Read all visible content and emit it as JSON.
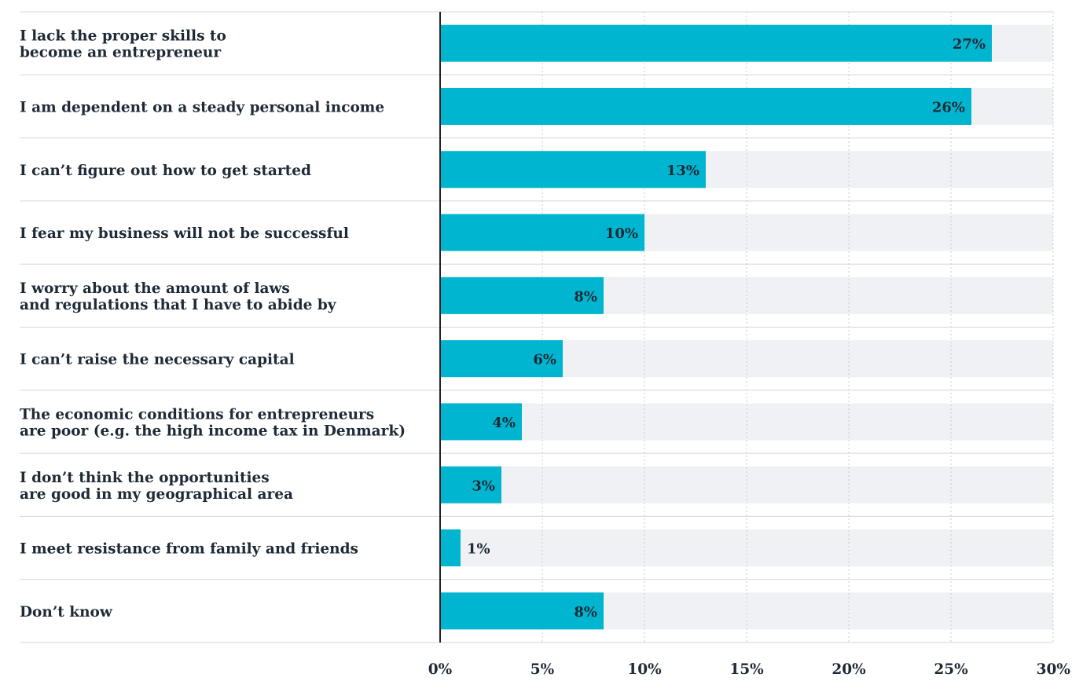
{
  "chart_data": {
    "type": "bar",
    "orientation": "horizontal",
    "categories": [
      [
        "I lack the proper skills to",
        "become an entrepreneur"
      ],
      [
        "I am dependent on a steady personal income"
      ],
      [
        "I can’t figure out how to get started"
      ],
      [
        "I fear my business will not be successful"
      ],
      [
        "I worry about the amount of laws",
        "and regulations that I have to abide by"
      ],
      [
        "I can’t raise the necessary capital"
      ],
      [
        "The economic conditions for entrepreneurs",
        "are poor (e.g. the high income tax in Denmark)"
      ],
      [
        "I don’t think the opportunities",
        "are good in my geographical area"
      ],
      [
        "I meet resistance from family and friends"
      ],
      [
        "Don’t know"
      ]
    ],
    "values": [
      27,
      26,
      13,
      10,
      8,
      6,
      4,
      3,
      1,
      8
    ],
    "value_labels": [
      "27%",
      "26%",
      "13%",
      "10%",
      "8%",
      "6%",
      "4%",
      "3%",
      "1%",
      "8%"
    ],
    "xlim": [
      0,
      30
    ],
    "x_ticks": [
      0,
      5,
      10,
      15,
      20,
      25,
      30
    ],
    "x_tick_labels": [
      "0%",
      "5%",
      "10%",
      "15%",
      "20%",
      "25%",
      "30%"
    ],
    "grid": true,
    "legend": "none",
    "colors": {
      "bar": "#00b5cf",
      "track": "#eff1f4",
      "text": "#1f2a37",
      "grid": "#c9ccd1",
      "separator": "#d5d7db",
      "axis": "#222222"
    }
  }
}
